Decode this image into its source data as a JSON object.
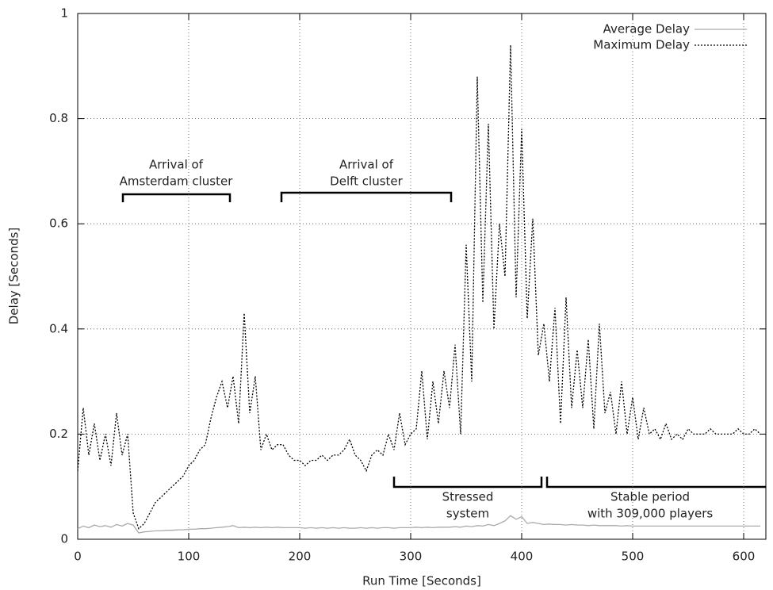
{
  "chart_data": {
    "type": "line",
    "xlabel": "Run Time [Seconds]",
    "ylabel": "Delay [Seconds]",
    "xlim": [
      0,
      620
    ],
    "xticks": [
      0,
      100,
      200,
      300,
      400,
      500,
      600
    ],
    "ylim": [
      0,
      1
    ],
    "yticks": [
      0,
      0.2,
      0.4,
      0.6,
      0.8,
      1
    ],
    "grid": true,
    "legend": "top right",
    "annotations": [
      [
        "Arrival of",
        "Amsterdam cluster"
      ],
      [
        "Arrival of",
        "Delft cluster"
      ],
      [
        "Stressed",
        "system"
      ],
      [
        "Stable period",
        "with 309,000 players"
      ]
    ],
    "x": [
      0,
      5,
      10,
      15,
      20,
      25,
      30,
      35,
      40,
      45,
      50,
      55,
      60,
      65,
      70,
      75,
      80,
      85,
      90,
      95,
      100,
      105,
      110,
      115,
      120,
      125,
      130,
      135,
      140,
      145,
      150,
      155,
      160,
      165,
      170,
      175,
      180,
      185,
      190,
      195,
      200,
      205,
      210,
      215,
      220,
      225,
      230,
      235,
      240,
      245,
      250,
      255,
      260,
      265,
      270,
      275,
      280,
      285,
      290,
      295,
      300,
      305,
      310,
      315,
      320,
      325,
      330,
      335,
      340,
      345,
      350,
      355,
      360,
      365,
      370,
      375,
      380,
      385,
      390,
      395,
      400,
      405,
      410,
      415,
      420,
      425,
      430,
      435,
      440,
      445,
      450,
      455,
      460,
      465,
      470,
      475,
      480,
      485,
      490,
      495,
      500,
      505,
      510,
      515,
      520,
      525,
      530,
      535,
      540,
      545,
      550,
      555,
      560,
      565,
      570,
      575,
      580,
      585,
      590,
      595,
      600,
      605,
      610,
      615
    ],
    "series": [
      {
        "name": "Average Delay",
        "color": "#aaaaaa",
        "dash": "solid",
        "values": [
          0.02,
          0.025,
          0.022,
          0.027,
          0.024,
          0.026,
          0.023,
          0.028,
          0.025,
          0.03,
          0.027,
          0.012,
          0.014,
          0.015,
          0.016,
          0.016,
          0.017,
          0.017,
          0.018,
          0.018,
          0.019,
          0.019,
          0.02,
          0.02,
          0.021,
          0.022,
          0.023,
          0.024,
          0.026,
          0.022,
          0.023,
          0.022,
          0.023,
          0.022,
          0.023,
          0.022,
          0.023,
          0.022,
          0.022,
          0.022,
          0.022,
          0.021,
          0.022,
          0.021,
          0.022,
          0.021,
          0.022,
          0.021,
          0.022,
          0.021,
          0.021,
          0.022,
          0.021,
          0.022,
          0.021,
          0.022,
          0.022,
          0.021,
          0.022,
          0.022,
          0.022,
          0.023,
          0.022,
          0.023,
          0.022,
          0.023,
          0.023,
          0.023,
          0.024,
          0.023,
          0.025,
          0.024,
          0.026,
          0.025,
          0.028,
          0.026,
          0.03,
          0.035,
          0.045,
          0.038,
          0.043,
          0.03,
          0.032,
          0.03,
          0.028,
          0.029,
          0.028,
          0.028,
          0.027,
          0.028,
          0.027,
          0.027,
          0.026,
          0.027,
          0.026,
          0.026,
          0.026,
          0.026,
          0.025,
          0.026,
          0.025,
          0.025,
          0.025,
          0.025,
          0.025,
          0.025,
          0.025,
          0.025,
          0.025,
          0.025,
          0.025,
          0.025,
          0.025,
          0.025,
          0.025,
          0.025,
          0.025,
          0.025,
          0.025,
          0.025,
          0.025,
          0.025,
          0.025,
          0.025
        ]
      },
      {
        "name": "Maximum Delay",
        "color": "#000000",
        "dash": "dotted",
        "values": [
          0.13,
          0.25,
          0.16,
          0.22,
          0.15,
          0.2,
          0.14,
          0.24,
          0.16,
          0.2,
          0.05,
          0.02,
          0.03,
          0.05,
          0.07,
          0.08,
          0.09,
          0.1,
          0.11,
          0.12,
          0.14,
          0.15,
          0.17,
          0.18,
          0.23,
          0.27,
          0.3,
          0.25,
          0.31,
          0.22,
          0.43,
          0.24,
          0.31,
          0.17,
          0.2,
          0.17,
          0.18,
          0.18,
          0.16,
          0.15,
          0.15,
          0.14,
          0.15,
          0.15,
          0.16,
          0.15,
          0.16,
          0.16,
          0.17,
          0.19,
          0.16,
          0.15,
          0.13,
          0.16,
          0.17,
          0.16,
          0.2,
          0.17,
          0.24,
          0.18,
          0.2,
          0.21,
          0.32,
          0.19,
          0.3,
          0.22,
          0.32,
          0.25,
          0.37,
          0.2,
          0.56,
          0.3,
          0.88,
          0.45,
          0.79,
          0.4,
          0.6,
          0.5,
          0.94,
          0.46,
          0.78,
          0.42,
          0.61,
          0.35,
          0.41,
          0.3,
          0.44,
          0.22,
          0.46,
          0.25,
          0.36,
          0.25,
          0.38,
          0.21,
          0.41,
          0.24,
          0.28,
          0.2,
          0.3,
          0.2,
          0.27,
          0.19,
          0.25,
          0.2,
          0.21,
          0.19,
          0.22,
          0.19,
          0.2,
          0.19,
          0.21,
          0.2,
          0.2,
          0.2,
          0.21,
          0.2,
          0.2,
          0.2,
          0.2,
          0.21,
          0.2,
          0.2,
          0.21,
          0.2
        ]
      }
    ]
  }
}
